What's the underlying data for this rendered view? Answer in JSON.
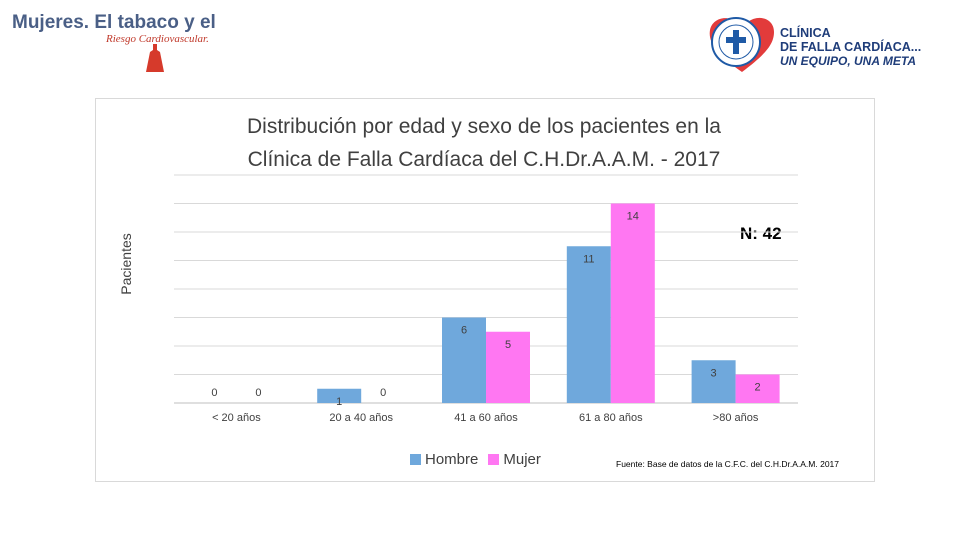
{
  "header": {
    "title": "Mujeres. El tabaco y el",
    "subtitle": "Riesgo Cardiovascular.",
    "logo_name": "dress-icon"
  },
  "clinic_logo": {
    "line1": "CLÍNICA",
    "line2": "DE FALLA CARDÍACA...",
    "line3": "UN EQUIPO, UNA META"
  },
  "note": {
    "n_label": "N: 42",
    "source": "Fuente: Base de datos de la C.F.C. del C.H.Dr.A.A.M. 2017"
  },
  "colors": {
    "hombre": "#6fa8dc",
    "mujer": "#ff77f2",
    "grid": "#d9d9d9",
    "text": "#404040"
  },
  "chart_data": {
    "type": "bar",
    "title_line1": "Distribución por edad y sexo de los pacientes en la",
    "title_line2": "Clínica de Falla Cardíaca del C.H.Dr.A.A.M. - 2017",
    "xlabel": "",
    "ylabel": "Pacientes",
    "categories": [
      "< 20 años",
      "20 a 40 años",
      "41 a 60 años",
      "61 a 80 años",
      ">80 años"
    ],
    "series": [
      {
        "name": "Hombre",
        "values": [
          0,
          1,
          6,
          11,
          3
        ]
      },
      {
        "name": "Mujer",
        "values": [
          0,
          0,
          5,
          14,
          2
        ]
      }
    ],
    "ylim": [
      0,
      16
    ],
    "grid": true,
    "legend": "bottom"
  }
}
